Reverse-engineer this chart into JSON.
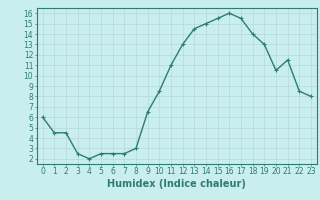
{
  "x": [
    0,
    1,
    2,
    3,
    4,
    5,
    6,
    7,
    8,
    9,
    10,
    11,
    12,
    13,
    14,
    15,
    16,
    17,
    18,
    19,
    20,
    21,
    22,
    23
  ],
  "y": [
    6,
    4.5,
    4.5,
    2.5,
    2,
    2.5,
    2.5,
    2.5,
    3,
    6.5,
    8.5,
    11,
    13,
    14.5,
    15,
    15.5,
    16,
    15.5,
    14,
    13,
    10.5,
    11.5,
    8.5,
    8
  ],
  "line_color": "#2e7d6e",
  "marker": "+",
  "marker_size": 3,
  "line_width": 1.0,
  "bg_color": "#c8eeee",
  "grid_color": "#b8d8d8",
  "xlabel": "Humidex (Indice chaleur)",
  "xlim": [
    -0.5,
    23.5
  ],
  "ylim": [
    1.5,
    16.5
  ],
  "yticks": [
    2,
    3,
    4,
    5,
    6,
    7,
    8,
    9,
    10,
    11,
    12,
    13,
    14,
    15,
    16
  ],
  "xticks": [
    0,
    1,
    2,
    3,
    4,
    5,
    6,
    7,
    8,
    9,
    10,
    11,
    12,
    13,
    14,
    15,
    16,
    17,
    18,
    19,
    20,
    21,
    22,
    23
  ],
  "tick_label_size": 5.5,
  "xlabel_size": 7,
  "axis_color": "#2e7d6e",
  "spine_color": "#2e7d6e"
}
